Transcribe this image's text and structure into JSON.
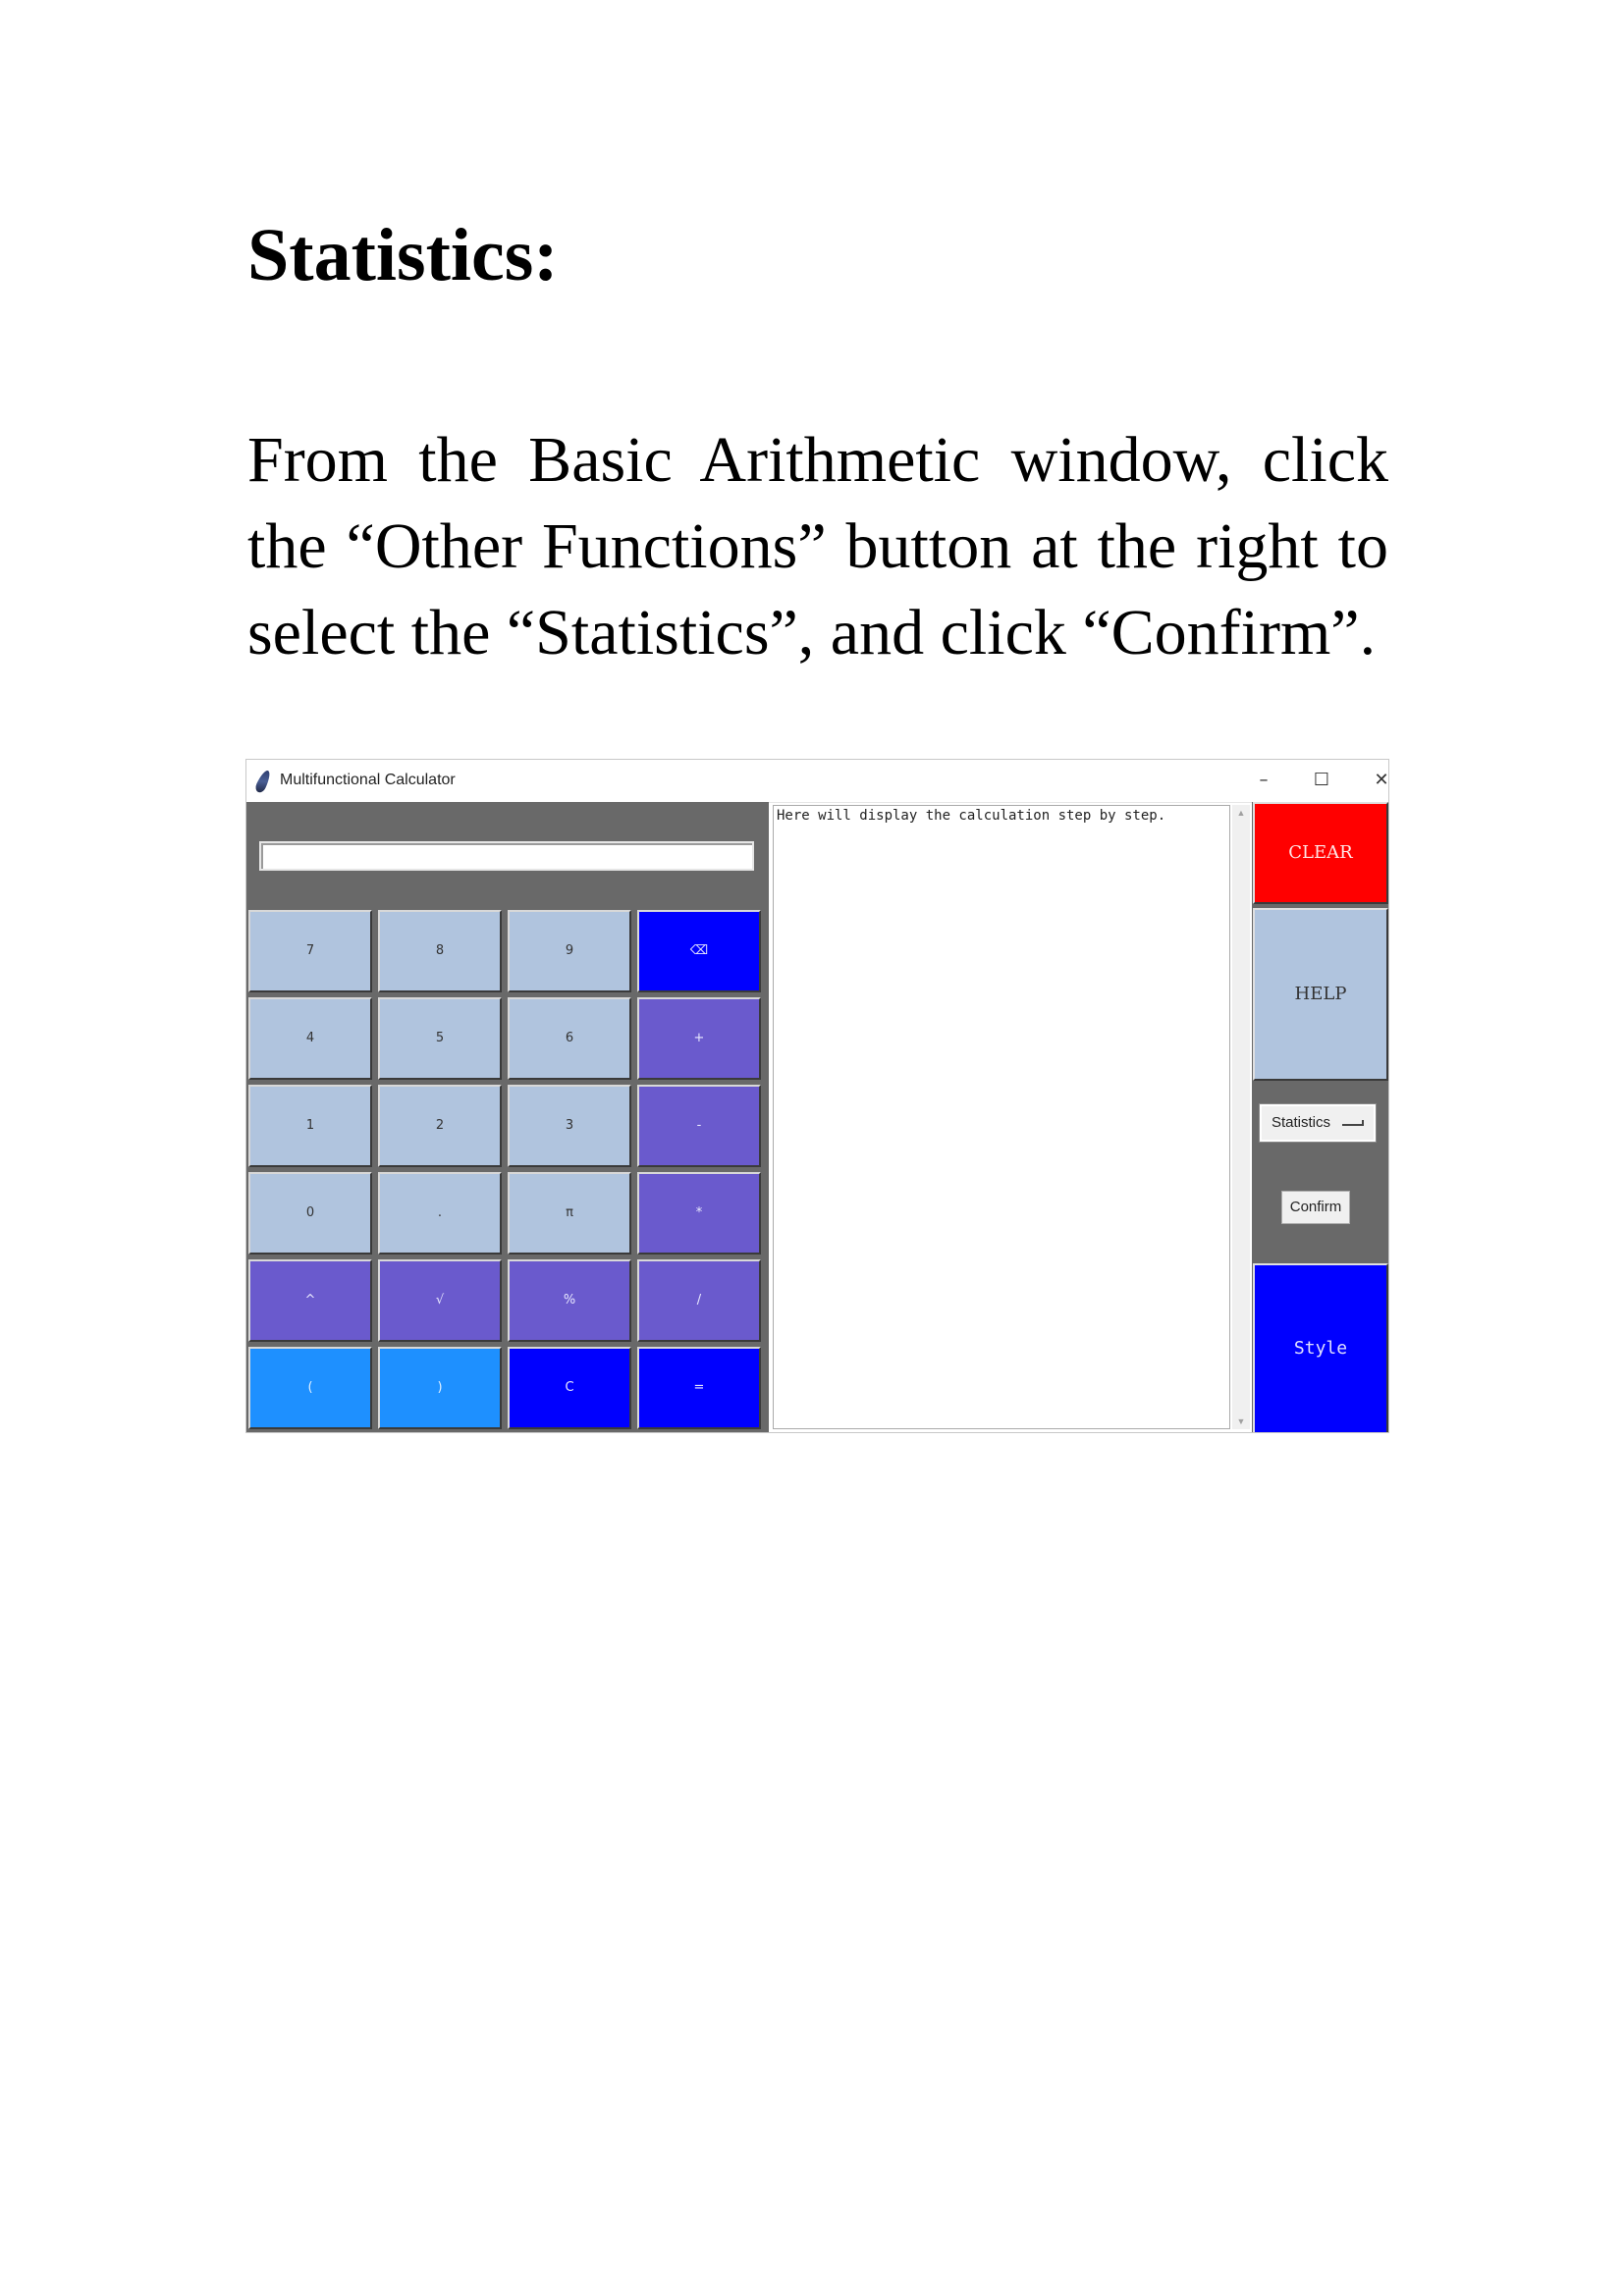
{
  "document": {
    "heading": "Statistics:",
    "instructions": "From the Basic Arithmetic window, click the “Other Functions” button at the right to select the “Statistics”, and click “Confirm”."
  },
  "window": {
    "title": "Multifunctional Calculator",
    "controls": {
      "minimize": "–",
      "maximize": "☐",
      "close": "✕"
    }
  },
  "calculator": {
    "display_value": "",
    "keys": [
      [
        "7",
        "8",
        "9",
        "⌫"
      ],
      [
        "4",
        "5",
        "6",
        "+"
      ],
      [
        "1",
        "2",
        "3",
        "-"
      ],
      [
        "0",
        ".",
        "π",
        "*"
      ],
      [
        "^",
        "√",
        "%",
        "/"
      ],
      [
        "(",
        ")",
        "C",
        "="
      ]
    ],
    "steps_text": "Here will display the calculation step by step.",
    "scroll_up": "▲",
    "scroll_down": "▼"
  },
  "sidebar": {
    "clear_label": "CLEAR",
    "help_label": "HELP",
    "function_selected": "Statistics",
    "confirm_label": "Confirm",
    "style_label": "Style"
  },
  "colors": {
    "panel_gray": "#696969",
    "key_light": "#b0c4de",
    "key_purple": "#6a5acd",
    "key_blue": "#0000ff",
    "key_sky": "#1e90ff",
    "clear_red": "#ff0000"
  }
}
